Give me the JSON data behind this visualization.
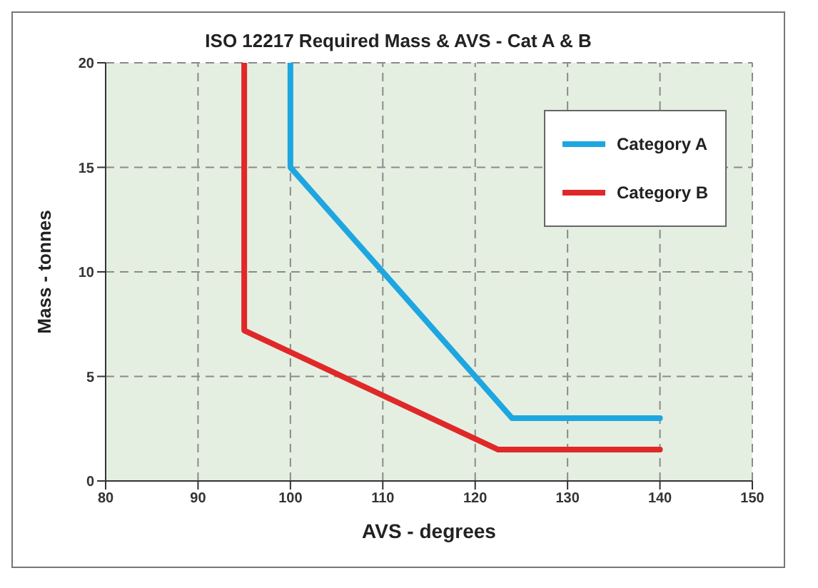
{
  "chart_data": {
    "type": "line",
    "title": "ISO 12217 Required Mass & AVS - Cat A & B",
    "xlabel": "AVS - degrees",
    "ylabel": "Mass - tonnes",
    "xlim": [
      80,
      150
    ],
    "xticks": [
      80,
      90,
      100,
      110,
      120,
      130,
      140,
      150
    ],
    "ylim": [
      0,
      20
    ],
    "yticks": [
      0,
      5,
      10,
      15,
      20
    ],
    "grid": true,
    "legend": "top right",
    "marker": "none",
    "line_style": "solid",
    "series": [
      {
        "name": "Category A",
        "color": "#1ea6e0",
        "x": [
          100,
          100,
          124,
          140
        ],
        "values": [
          20,
          15,
          3,
          3
        ]
      },
      {
        "name": "Category B",
        "color": "#e02828",
        "x": [
          95,
          95,
          122.5,
          140
        ],
        "values": [
          20,
          7.2,
          1.5,
          1.5
        ]
      }
    ]
  }
}
